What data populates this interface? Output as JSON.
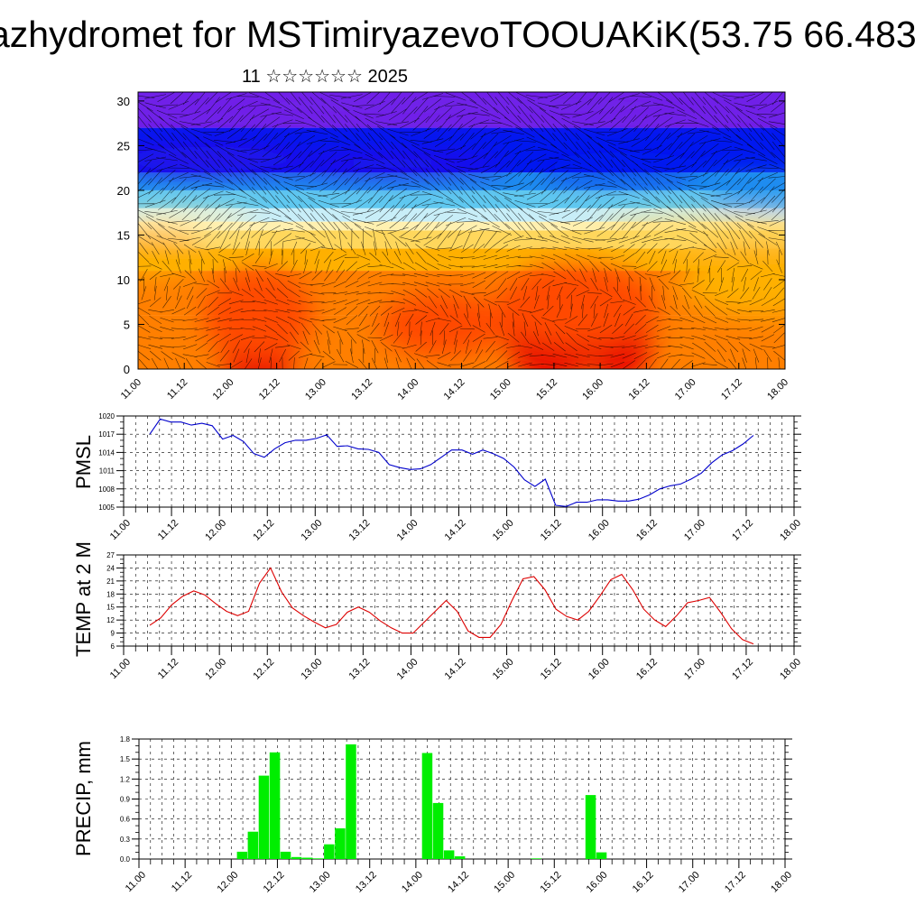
{
  "header": {
    "title": "azhydromet for MSTimiryazevoTOOUAKiK(53.75 66.483",
    "subtitle": "11 ☆☆☆☆☆☆ 2025"
  },
  "chart_data": [
    {
      "type": "heatmap",
      "title": "",
      "xlabel": "",
      "ylabel": "",
      "x_ticks": [
        "11.00",
        "11.12",
        "12.00",
        "12.12",
        "13.00",
        "13.12",
        "14.00",
        "14.12",
        "15.00",
        "15.12",
        "16.00",
        "16.12",
        "17.00",
        "17.12",
        "18.00"
      ],
      "y_ticks": [
        0,
        5,
        10,
        15,
        20,
        25,
        30
      ],
      "ylim": [
        0,
        31
      ],
      "colors": [
        "#e80000",
        "#ff4a00",
        "#ff7f00",
        "#ffb000",
        "#ffd75c",
        "#fff0b0",
        "#c8eef8",
        "#5fc8f0",
        "#1e8cf0",
        "#0018f0",
        "#3010e8",
        "#7020e8"
      ],
      "overlay": "wind vectors"
    },
    {
      "type": "line",
      "ylabel": "PMSL",
      "y_ticks": [
        1005,
        1008,
        1011,
        1014,
        1017,
        1020
      ],
      "ylim": [
        1005,
        1020
      ],
      "x_ticks": [
        "11.00",
        "11.12",
        "12.00",
        "12.12",
        "13.00",
        "13.12",
        "14.00",
        "14.12",
        "15.00",
        "15.12",
        "16.00",
        "16.12",
        "17.00",
        "17.12",
        "18.00"
      ],
      "color": "#0000cc",
      "values": [
        1017.0,
        1019.5,
        1019.0,
        1019.0,
        1018.5,
        1018.8,
        1018.4,
        1016.2,
        1016.8,
        1015.8,
        1013.8,
        1013.2,
        1014.6,
        1015.6,
        1016.0,
        1016.0,
        1016.3,
        1016.9,
        1015.0,
        1015.1,
        1014.6,
        1014.5,
        1014.0,
        1012.0,
        1011.5,
        1011.2,
        1011.3,
        1012.0,
        1013.2,
        1014.4,
        1014.4,
        1013.7,
        1014.4,
        1013.8,
        1013.0,
        1011.6,
        1009.5,
        1008.4,
        1009.6,
        1005.3,
        1005.1,
        1005.8,
        1005.8,
        1006.2,
        1006.2,
        1006.0,
        1006.0,
        1006.3,
        1007.0,
        1008.0,
        1008.5,
        1008.8,
        1009.6,
        1010.6,
        1012.3,
        1013.6,
        1014.3,
        1015.4,
        1016.8
      ]
    },
    {
      "type": "line",
      "ylabel": "TEMP at 2 M",
      "y_ticks": [
        6,
        9,
        12,
        15,
        18,
        21,
        24,
        27
      ],
      "ylim": [
        6,
        27
      ],
      "x_ticks": [
        "11.00",
        "11.12",
        "12.00",
        "12.12",
        "13.00",
        "13.12",
        "14.00",
        "14.12",
        "15.00",
        "15.12",
        "16.00",
        "16.12",
        "17.00",
        "17.12",
        "18.00"
      ],
      "color": "#dd0000",
      "values": [
        10.8,
        12.5,
        15.5,
        17.5,
        18.7,
        17.8,
        15.8,
        14.0,
        13.0,
        14.0,
        20.5,
        24.0,
        18.5,
        14.8,
        13.0,
        11.5,
        10.2,
        11.0,
        13.8,
        15.0,
        13.8,
        11.8,
        10.2,
        9.0,
        9.0,
        11.5,
        14.0,
        16.5,
        14.0,
        9.5,
        8.0,
        8.0,
        11.0,
        16.5,
        21.5,
        22.0,
        19.0,
        14.5,
        12.8,
        12.0,
        14.0,
        17.5,
        21.3,
        22.5,
        19.0,
        14.5,
        12.0,
        10.5,
        13.0,
        16.0,
        16.5,
        17.2,
        13.8,
        10.0,
        7.5,
        6.5
      ]
    },
    {
      "type": "bar",
      "ylabel": "PRECIP, mm",
      "y_ticks": [
        "0.0",
        "0.3",
        "0.6",
        "0.9",
        "1.2",
        "1.5",
        "1.8"
      ],
      "ylim": [
        0,
        1.8
      ],
      "x_ticks": [
        "11.00",
        "11.12",
        "12.00",
        "12.12",
        "13.00",
        "13.12",
        "14.00",
        "14.12",
        "15.00",
        "15.12",
        "16.00",
        "16.12",
        "17.00",
        "17.12",
        "18.00"
      ],
      "color": "#00ee00",
      "values": [
        0,
        0,
        0,
        0,
        0,
        0,
        0,
        0,
        0.11,
        0.41,
        1.25,
        1.6,
        0.11,
        0.03,
        0.02,
        0.01,
        0.22,
        0.46,
        1.72,
        0,
        0,
        0,
        0,
        0,
        0,
        1.59,
        0.84,
        0.13,
        0.04,
        0,
        0,
        0,
        0,
        0,
        0,
        0.01,
        0,
        0,
        0,
        0,
        0.96,
        0.1,
        0,
        0,
        0,
        0,
        0,
        0,
        0,
        0,
        0,
        0,
        0,
        0,
        0,
        0,
        0,
        0
      ]
    }
  ]
}
